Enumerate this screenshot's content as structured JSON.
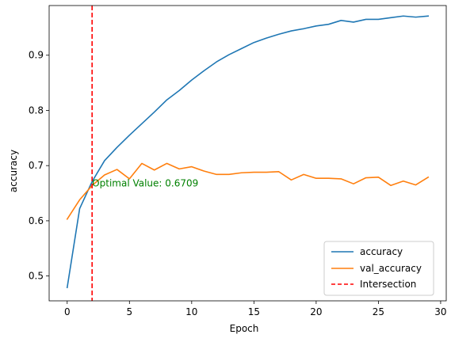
{
  "chart_data": {
    "type": "line",
    "xlabel": "Epoch",
    "ylabel": "accuracy",
    "xlim": [
      -1.45,
      30.45
    ],
    "ylim": [
      0.455,
      0.99
    ],
    "xticks": [
      0,
      5,
      10,
      15,
      20,
      25,
      30
    ],
    "yticks": [
      0.5,
      0.6,
      0.7,
      0.8,
      0.9
    ],
    "x": [
      0,
      1,
      2,
      3,
      4,
      5,
      6,
      7,
      8,
      9,
      10,
      11,
      12,
      13,
      14,
      15,
      16,
      17,
      18,
      19,
      20,
      21,
      22,
      23,
      24,
      25,
      26,
      27,
      28,
      29
    ],
    "series": [
      {
        "name": "accuracy",
        "color": "#1f77b4",
        "values": [
          0.479,
          0.622,
          0.671,
          0.709,
          0.733,
          0.755,
          0.776,
          0.797,
          0.819,
          0.836,
          0.855,
          0.872,
          0.888,
          0.901,
          0.912,
          0.923,
          0.931,
          0.938,
          0.944,
          0.948,
          0.953,
          0.956,
          0.963,
          0.96,
          0.965,
          0.965,
          0.968,
          0.971,
          0.969,
          0.971
        ]
      },
      {
        "name": "val_accuracy",
        "color": "#ff7f0e",
        "values": [
          0.603,
          0.638,
          0.664,
          0.683,
          0.693,
          0.676,
          0.704,
          0.692,
          0.704,
          0.694,
          0.698,
          0.69,
          0.684,
          0.684,
          0.687,
          0.688,
          0.688,
          0.689,
          0.674,
          0.684,
          0.677,
          0.677,
          0.676,
          0.667,
          0.678,
          0.679,
          0.664,
          0.672,
          0.665,
          0.679
        ]
      }
    ],
    "intersection": {
      "name": "Intersection",
      "x": 2,
      "color": "#ff0000",
      "style": "dashed"
    },
    "annotation": {
      "text": "Optimal Value: 0.6709",
      "x": 2,
      "y": 0.6709,
      "color": "#008000"
    },
    "legend": {
      "placement": "lower-right",
      "entries": [
        "accuracy",
        "val_accuracy",
        "Intersection"
      ]
    },
    "grid": false
  }
}
